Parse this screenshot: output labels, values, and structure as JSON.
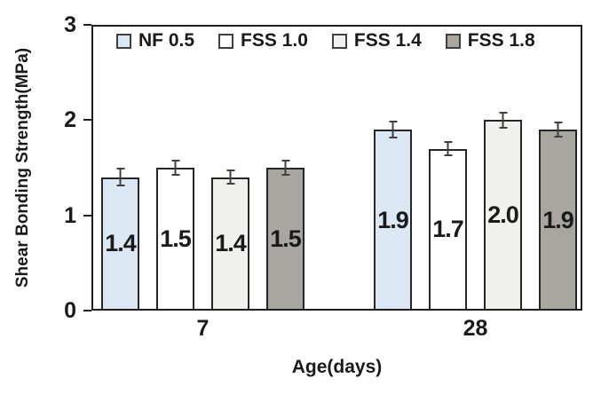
{
  "chart_data": {
    "type": "bar",
    "title": "",
    "xlabel": "Age(days)",
    "ylabel": "Shear Bonding Strength(MPa)",
    "categories": [
      "7",
      "28"
    ],
    "series": [
      {
        "name": "NF 0.5",
        "fill": "#dbe7f2",
        "values": [
          1.4,
          1.9
        ],
        "bar_labels": [
          "1.4",
          "1.9"
        ],
        "errors": [
          0.1,
          0.09
        ]
      },
      {
        "name": "FSS 1.0",
        "fill": "#ffffff",
        "values": [
          1.5,
          1.7
        ],
        "bar_labels": [
          "1.5",
          "1.7"
        ],
        "errors": [
          0.08,
          0.08
        ]
      },
      {
        "name": "FSS 1.4",
        "fill": "#f0f0ee",
        "values": [
          1.4,
          2.0
        ],
        "bar_labels": [
          "1.4",
          "2.0"
        ],
        "errors": [
          0.08,
          0.09
        ]
      },
      {
        "name": "FSS 1.8",
        "fill": "#a9a6a2",
        "values": [
          1.5,
          1.9
        ],
        "bar_labels": [
          "1.5",
          "1.9"
        ],
        "errors": [
          0.08,
          0.08
        ]
      }
    ],
    "ylim": [
      0,
      3
    ],
    "yticks": [
      0,
      1,
      2,
      3
    ],
    "grid": false,
    "legend_position": "inside-top-left",
    "colors": {
      "frame": "#1f1f1f",
      "bar_border": "#262626",
      "error_bar": "#3f3f3f",
      "text": "#1a1a1a",
      "background": "#ffffff"
    }
  }
}
